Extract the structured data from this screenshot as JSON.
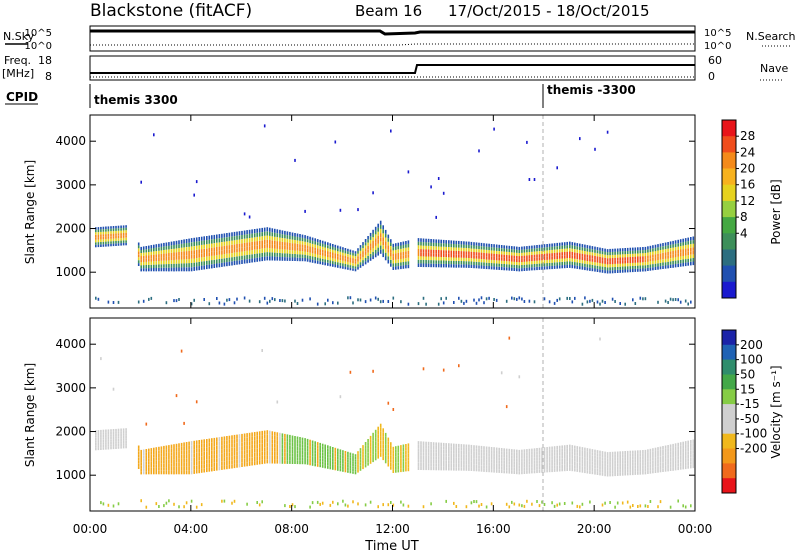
{
  "header": {
    "station": "Blackstone (fitACF)",
    "beam": "Beam 16",
    "dates": "17/Oct/2015 - 18/Oct/2015"
  },
  "labels": {
    "nsky": "N.Sky",
    "nsearch": "N.Search",
    "freq": "Freq.",
    "mhz": "[MHz]",
    "nave": "Nave",
    "cpid": "CPID",
    "ylabel": "Slant Range [km]",
    "xlabel": "Time UT",
    "power_label": "Power [dB]",
    "velocity_label": "Velocity [m s⁻¹]"
  },
  "noise_panel": {
    "left_ticks": [
      "10^5",
      "10^0"
    ],
    "right_ticks": [
      "10^5",
      "10^0"
    ]
  },
  "freq_panel": {
    "left_ticks": [
      "18",
      "8"
    ],
    "right_ticks": [
      "60",
      "0"
    ]
  },
  "cpid_panel": {
    "entries": [
      "themis 3300",
      "themis -3300"
    ]
  },
  "power_colorbar": {
    "ticks": [
      "28",
      "24",
      "20",
      "16",
      "12",
      "8",
      "4"
    ],
    "colors": [
      "#e8141a",
      "#f04d1c",
      "#f48a1a",
      "#f7b21e",
      "#e6d21e",
      "#96d040",
      "#44a842",
      "#3d8f5a",
      "#2c6e80",
      "#2050b0",
      "#1a1acf"
    ]
  },
  "velocity_colorbar": {
    "ticks": [
      "200",
      "100",
      "50",
      "15",
      "-15",
      "-50",
      "-100",
      "-200"
    ],
    "colors": [
      "#1b23a8",
      "#1f62b4",
      "#2f8d6c",
      "#43a848",
      "#86cc45",
      "#cfcfcf",
      "#cfcfcf",
      "#f0b81d",
      "#f3981a",
      "#f06a1c",
      "#e8141a"
    ]
  },
  "chart_data": {
    "type": "heatmap",
    "title": "Blackstone (fitACF)",
    "xlabel": "Time UT",
    "ylabel": "Slant Range [km]",
    "x_ticks": [
      "00:00",
      "04:00",
      "08:00",
      "12:00",
      "16:00",
      "20:00",
      "00:00"
    ],
    "y_ticks": [
      1000,
      2000,
      3000,
      4000
    ],
    "xlim_hours": [
      0,
      24
    ],
    "ylim_km": [
      180,
      4600
    ],
    "cpid_change_hour": 18,
    "power_band": {
      "hours": [
        0.2,
        1.5,
        2.0,
        4.0,
        7.0,
        8.5,
        10.5,
        11.5,
        12.0,
        13.0,
        15.0,
        17.0,
        19.0,
        20.5,
        22.0,
        24.0
      ],
      "center_km": [
        1800,
        1850,
        1300,
        1400,
        1650,
        1550,
        1250,
        1800,
        1350,
        1450,
        1400,
        1300,
        1400,
        1250,
        1300,
        1500
      ],
      "halfwidth_km": [
        230,
        230,
        280,
        380,
        380,
        300,
        230,
        380,
        300,
        330,
        300,
        280,
        300,
        280,
        280,
        330
      ]
    },
    "velocity_groups": [
      {
        "range": "-50 to -100 (orange)",
        "start_hour": 1.8,
        "end_hour": 7.5
      },
      {
        "range": "15 to 50 (green)",
        "start_hour": 7.5,
        "end_hour": 10.5
      },
      {
        "range": "-15 to 15 (gray)",
        "start_hour": 12.5,
        "end_hour": 24
      }
    ]
  }
}
